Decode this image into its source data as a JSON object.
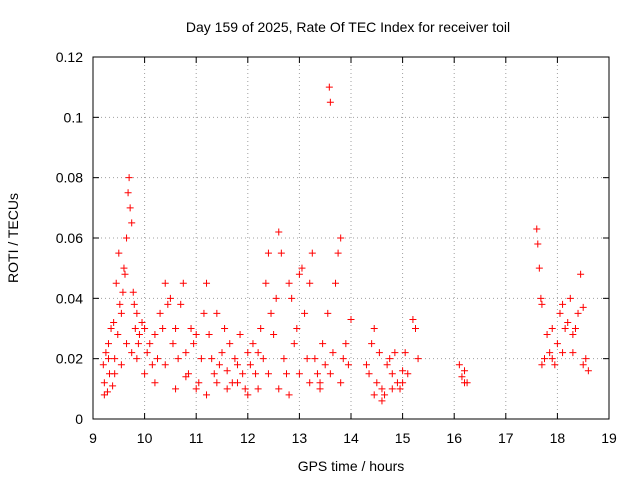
{
  "chart_data": {
    "type": "scatter",
    "title": "Day 159 of 2025, Rate Of TEC Index for receiver toil",
    "xlabel": "GPS time / hours",
    "ylabel": "ROTI / TECUs",
    "xlim": [
      9,
      19
    ],
    "ylim": [
      0,
      0.12
    ],
    "x_ticks": [
      9,
      10,
      11,
      12,
      13,
      14,
      15,
      16,
      17,
      18,
      19
    ],
    "y_ticks": [
      0,
      0.02,
      0.04,
      0.06,
      0.08,
      0.1,
      0.12
    ],
    "x_tick_labels": [
      "9",
      "10",
      "11",
      "12",
      "13",
      "14",
      "15",
      "16",
      "17",
      "18",
      "19"
    ],
    "y_tick_labels": [
      "0",
      "0.02",
      "0.04",
      "0.06",
      "0.08",
      "0.1",
      "0.12"
    ],
    "grid": true,
    "marker": "+",
    "colors": {
      "points": "#ff0000",
      "grid": "#a0a0a0",
      "axes": "#000000"
    },
    "series": [
      {
        "name": "ROTI",
        "x": [
          9.2,
          9.22,
          9.25,
          9.28,
          9.3,
          9.32,
          9.35,
          9.38,
          9.4,
          9.42,
          9.45,
          9.48,
          9.5,
          9.52,
          9.55,
          9.58,
          9.6,
          9.62,
          9.65,
          9.68,
          9.7,
          9.72,
          9.75,
          9.78,
          9.8,
          9.82,
          9.85,
          9.88,
          9.9,
          9.95,
          10.0,
          10.05,
          10.1,
          10.15,
          10.2,
          10.25,
          10.3,
          10.35,
          10.4,
          10.45,
          10.5,
          10.55,
          10.6,
          10.65,
          10.7,
          10.75,
          10.8,
          10.85,
          10.9,
          10.95,
          11.0,
          11.05,
          11.1,
          11.15,
          11.2,
          11.25,
          11.3,
          11.35,
          11.4,
          11.45,
          11.5,
          11.55,
          11.6,
          11.65,
          11.7,
          11.75,
          11.8,
          11.85,
          11.9,
          11.95,
          12.0,
          12.05,
          12.1,
          12.15,
          12.2,
          12.25,
          12.3,
          12.35,
          12.4,
          12.45,
          12.5,
          12.55,
          12.6,
          12.65,
          12.7,
          12.75,
          12.8,
          12.85,
          12.9,
          12.95,
          13.0,
          13.05,
          13.1,
          13.15,
          13.2,
          13.25,
          13.3,
          13.35,
          13.4,
          13.45,
          13.5,
          13.55,
          13.58,
          13.6,
          13.65,
          13.7,
          13.75,
          13.8,
          13.85,
          13.9,
          13.95,
          14.0,
          14.3,
          14.35,
          14.4,
          14.45,
          14.5,
          14.55,
          14.6,
          14.65,
          14.7,
          14.75,
          14.8,
          14.85,
          14.9,
          14.95,
          15.0,
          15.05,
          15.1,
          15.2,
          15.25,
          15.3,
          16.1,
          16.15,
          16.2,
          16.25,
          17.6,
          17.62,
          17.65,
          17.68,
          17.7,
          17.75,
          17.8,
          17.85,
          17.9,
          17.95,
          18.0,
          18.05,
          18.1,
          18.15,
          18.2,
          18.25,
          18.3,
          18.35,
          18.4,
          18.45,
          18.5,
          18.55,
          18.6,
          9.22,
          9.3,
          9.42,
          9.55,
          9.65,
          9.75,
          9.85,
          10.0,
          10.2,
          10.4,
          10.6,
          10.8,
          11.0,
          11.2,
          11.4,
          11.6,
          11.8,
          12.0,
          12.2,
          12.4,
          12.6,
          12.8,
          13.0,
          13.2,
          13.4,
          13.6,
          13.8,
          14.45,
          14.6,
          14.8,
          15.0,
          16.2,
          17.7,
          17.9,
          18.1,
          18.3,
          18.5
        ],
        "y": [
          0.018,
          0.012,
          0.022,
          0.009,
          0.025,
          0.015,
          0.03,
          0.011,
          0.032,
          0.02,
          0.045,
          0.028,
          0.055,
          0.038,
          0.035,
          0.042,
          0.05,
          0.048,
          0.06,
          0.075,
          0.08,
          0.07,
          0.065,
          0.042,
          0.038,
          0.03,
          0.035,
          0.025,
          0.028,
          0.032,
          0.03,
          0.022,
          0.025,
          0.018,
          0.028,
          0.02,
          0.035,
          0.03,
          0.045,
          0.038,
          0.04,
          0.025,
          0.03,
          0.02,
          0.038,
          0.045,
          0.022,
          0.015,
          0.03,
          0.025,
          0.028,
          0.012,
          0.02,
          0.035,
          0.045,
          0.028,
          0.02,
          0.015,
          0.035,
          0.018,
          0.022,
          0.03,
          0.016,
          0.025,
          0.012,
          0.02,
          0.018,
          0.028,
          0.015,
          0.01,
          0.022,
          0.018,
          0.025,
          0.015,
          0.022,
          0.03,
          0.02,
          0.045,
          0.055,
          0.035,
          0.028,
          0.04,
          0.062,
          0.055,
          0.02,
          0.015,
          0.045,
          0.04,
          0.025,
          0.03,
          0.048,
          0.05,
          0.035,
          0.02,
          0.045,
          0.055,
          0.02,
          0.015,
          0.012,
          0.025,
          0.018,
          0.035,
          0.11,
          0.105,
          0.022,
          0.045,
          0.055,
          0.06,
          0.02,
          0.025,
          0.018,
          0.033,
          0.018,
          0.015,
          0.025,
          0.03,
          0.012,
          0.022,
          0.01,
          0.008,
          0.018,
          0.02,
          0.015,
          0.022,
          0.012,
          0.01,
          0.016,
          0.022,
          0.015,
          0.033,
          0.03,
          0.02,
          0.018,
          0.014,
          0.016,
          0.012,
          0.063,
          0.058,
          0.05,
          0.04,
          0.038,
          0.02,
          0.028,
          0.022,
          0.03,
          0.018,
          0.025,
          0.035,
          0.038,
          0.03,
          0.032,
          0.04,
          0.028,
          0.03,
          0.035,
          0.048,
          0.037,
          0.02,
          0.016,
          0.008,
          0.02,
          0.015,
          0.018,
          0.025,
          0.022,
          0.02,
          0.015,
          0.012,
          0.018,
          0.01,
          0.014,
          0.01,
          0.008,
          0.012,
          0.01,
          0.012,
          0.008,
          0.01,
          0.015,
          0.01,
          0.008,
          0.015,
          0.012,
          0.01,
          0.015,
          0.012,
          0.008,
          0.006,
          0.01,
          0.012,
          0.012,
          0.018,
          0.02,
          0.022,
          0.022,
          0.018
        ]
      }
    ]
  }
}
